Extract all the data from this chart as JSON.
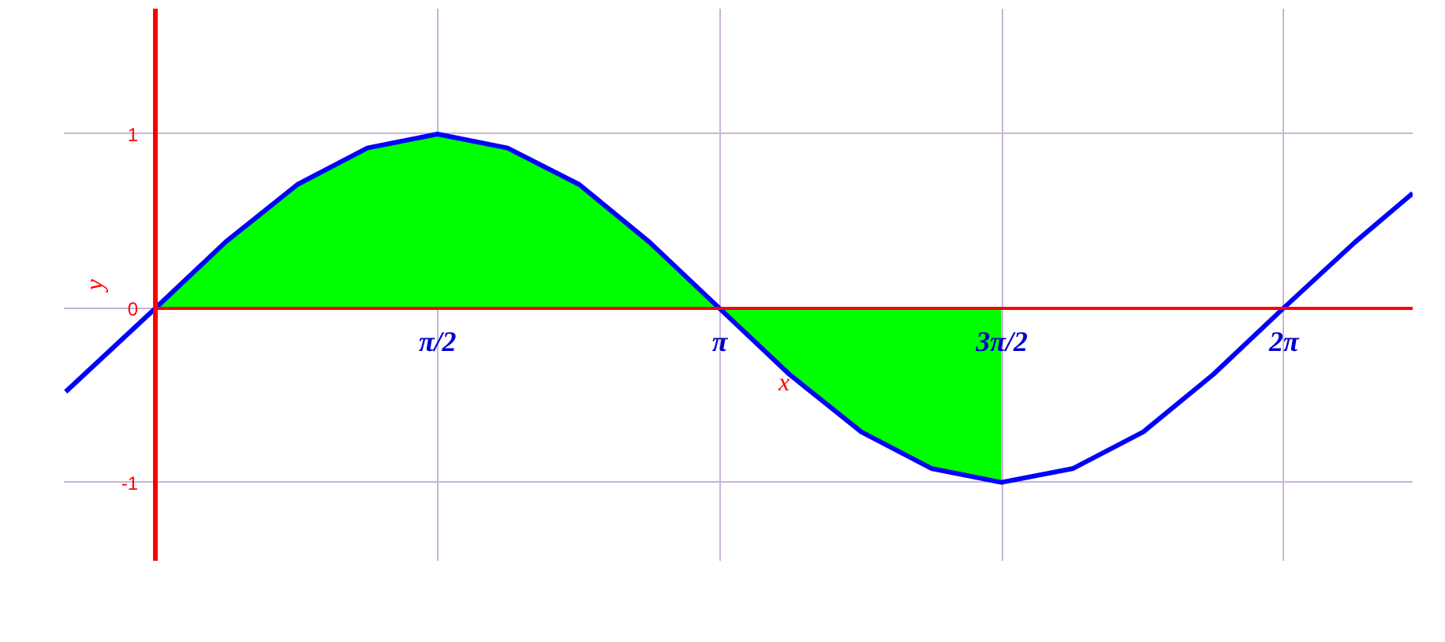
{
  "chart_data": {
    "type": "line",
    "xlabel": "x",
    "ylabel": "y",
    "xlim": [
      -0.51,
      7.0
    ],
    "ylim": [
      -1.45,
      1.72
    ],
    "xticks": [
      {
        "value": 1.5708,
        "label": "π/2"
      },
      {
        "value": 3.1416,
        "label": "π"
      },
      {
        "value": 4.7124,
        "label": "3π/2"
      },
      {
        "value": 6.2832,
        "label": "2π"
      }
    ],
    "yticks": [
      -1,
      0,
      1
    ],
    "grid": true,
    "series": [
      {
        "type": "area",
        "color": "#00ff00",
        "x": [
          0,
          0.39,
          0.79,
          1.18,
          1.57,
          1.96,
          2.36,
          2.75,
          3.14,
          3.53,
          3.93,
          4.32,
          4.71
        ],
        "values": [
          0,
          0.38,
          0.71,
          0.92,
          1,
          0.92,
          0.71,
          0.38,
          0,
          -0.38,
          -0.71,
          -0.92,
          -1
        ]
      },
      {
        "type": "line",
        "color": "#0000ff",
        "x": [
          -0.5,
          0,
          0.39,
          0.79,
          1.18,
          1.57,
          1.96,
          2.36,
          2.75,
          3.14,
          3.53,
          3.93,
          4.32,
          4.71,
          5.11,
          5.5,
          5.89,
          6.28,
          6.68,
          7.0
        ],
        "values": [
          -0.48,
          0,
          0.38,
          0.71,
          0.92,
          1,
          0.92,
          0.71,
          0.38,
          0,
          -0.38,
          -0.71,
          -0.92,
          -1,
          -0.92,
          -0.71,
          -0.38,
          0,
          0.38,
          0.66
        ]
      }
    ]
  }
}
